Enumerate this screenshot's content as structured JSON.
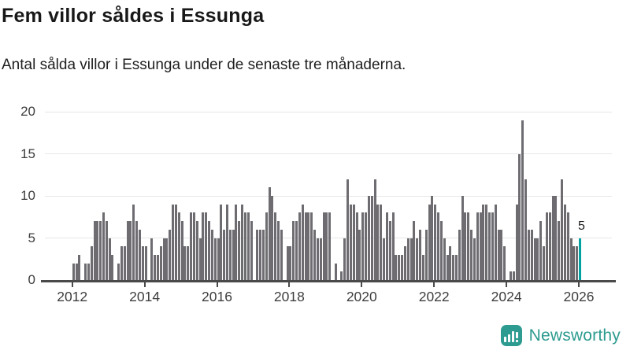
{
  "header": {
    "title": "Fem villor såldes i Essunga",
    "subtitle": "Antal sålda villor i Essunga under de senaste tre månaderna."
  },
  "chart_data": {
    "type": "bar",
    "title": "Fem villor såldes i Essunga",
    "subtitle": "Antal sålda villor i Essunga under de senaste tre månaderna.",
    "x_start": "2012-01",
    "x_end": "2026-01",
    "x_tick_labels": [
      "2012",
      "2014",
      "2016",
      "2018",
      "2020",
      "2022",
      "2024",
      "2026"
    ],
    "y_ticks": [
      0,
      5,
      10,
      15,
      20
    ],
    "ylim": [
      0,
      20
    ],
    "grid": true,
    "legend": false,
    "values": [
      2,
      2,
      3,
      0,
      2,
      2,
      4,
      7,
      7,
      7,
      8,
      7,
      5,
      3,
      0,
      2,
      4,
      4,
      7,
      7,
      9,
      7,
      6,
      4,
      4,
      0,
      5,
      3,
      3,
      4,
      5,
      5,
      6,
      9,
      9,
      8,
      7,
      4,
      4,
      8,
      8,
      7,
      5,
      8,
      8,
      7,
      6,
      5,
      5,
      9,
      6,
      9,
      6,
      6,
      9,
      7,
      9,
      8,
      8,
      7,
      0,
      6,
      6,
      6,
      8,
      11,
      10,
      8,
      7,
      6,
      0,
      4,
      4,
      7,
      7,
      8,
      9,
      8,
      8,
      8,
      6,
      5,
      5,
      8,
      8,
      8,
      0,
      2,
      0,
      1,
      5,
      12,
      9,
      9,
      8,
      6,
      8,
      8,
      10,
      10,
      12,
      9,
      9,
      5,
      8,
      7,
      8,
      3,
      3,
      3,
      4,
      5,
      5,
      7,
      5,
      6,
      3,
      6,
      9,
      10,
      9,
      8,
      7,
      5,
      3,
      4,
      3,
      3,
      6,
      10,
      8,
      8,
      6,
      5,
      8,
      8,
      9,
      9,
      8,
      8,
      9,
      6,
      6,
      4,
      0,
      1,
      1,
      9,
      15,
      19,
      12,
      6,
      6,
      5,
      5,
      7,
      4,
      8,
      8,
      10,
      10,
      7,
      12,
      9,
      8,
      5,
      4,
      4,
      5
    ],
    "highlight": {
      "index": 168,
      "value": 5,
      "label": "5"
    }
  },
  "footer": {
    "brand": "Newsworthy",
    "logo_icon": "bar-chart-speech-bubble"
  },
  "colors": {
    "bar": "#6e6c71",
    "highlight": "#00a3a2",
    "brand": "#2d9b8f",
    "grid": "#e7e7e7",
    "axis": "#4a4a4a",
    "tick_text": "#3d3d3d",
    "text": "#181818"
  }
}
